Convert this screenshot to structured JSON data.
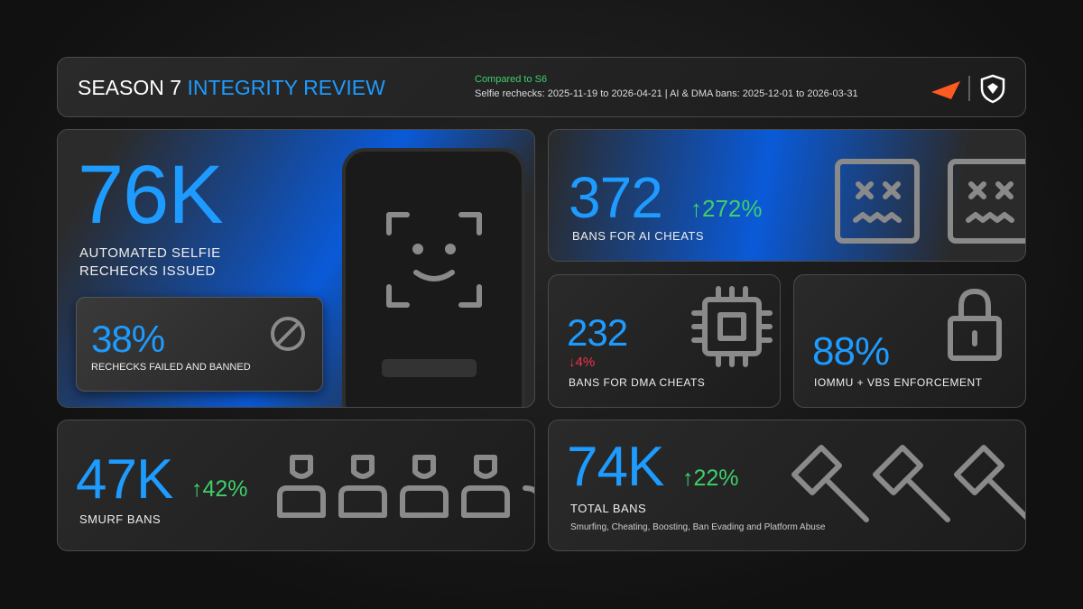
{
  "header": {
    "title_part1": "SEASON 7",
    "title_part2": "INTEGRITY REVIEW",
    "comparison": "Compared to S6",
    "periods": "Selfie rechecks: 2025-11-19 to 2026-04-21 | AI & DMA bans: 2025-12-01 to 2026-03-31"
  },
  "cards": [
    {
      "value": "76K",
      "label_line1": "AUTOMATED SELFIE",
      "label_line2": "RECHECKS ISSUED",
      "sub_value": "38%",
      "sub_label": "RECHECKS FAILED AND BANNED"
    },
    {
      "value": "372",
      "change": "↑272%",
      "label": "BANS FOR AI CHEATS"
    },
    {
      "value": "232",
      "change": "↓4%",
      "label": "BANS FOR DMA CHEATS"
    },
    {
      "value": "88%",
      "label": "IOMMU + VBS ENFORCEMENT"
    },
    {
      "value": "47K",
      "change": "↑42%",
      "label": "SMURF BANS"
    },
    {
      "value": "74K",
      "change": "↑22%",
      "label": "TOTAL BANS",
      "note": "Smurfing, Cheating, Boosting, Ban Evading and Platform Abuse"
    }
  ]
}
